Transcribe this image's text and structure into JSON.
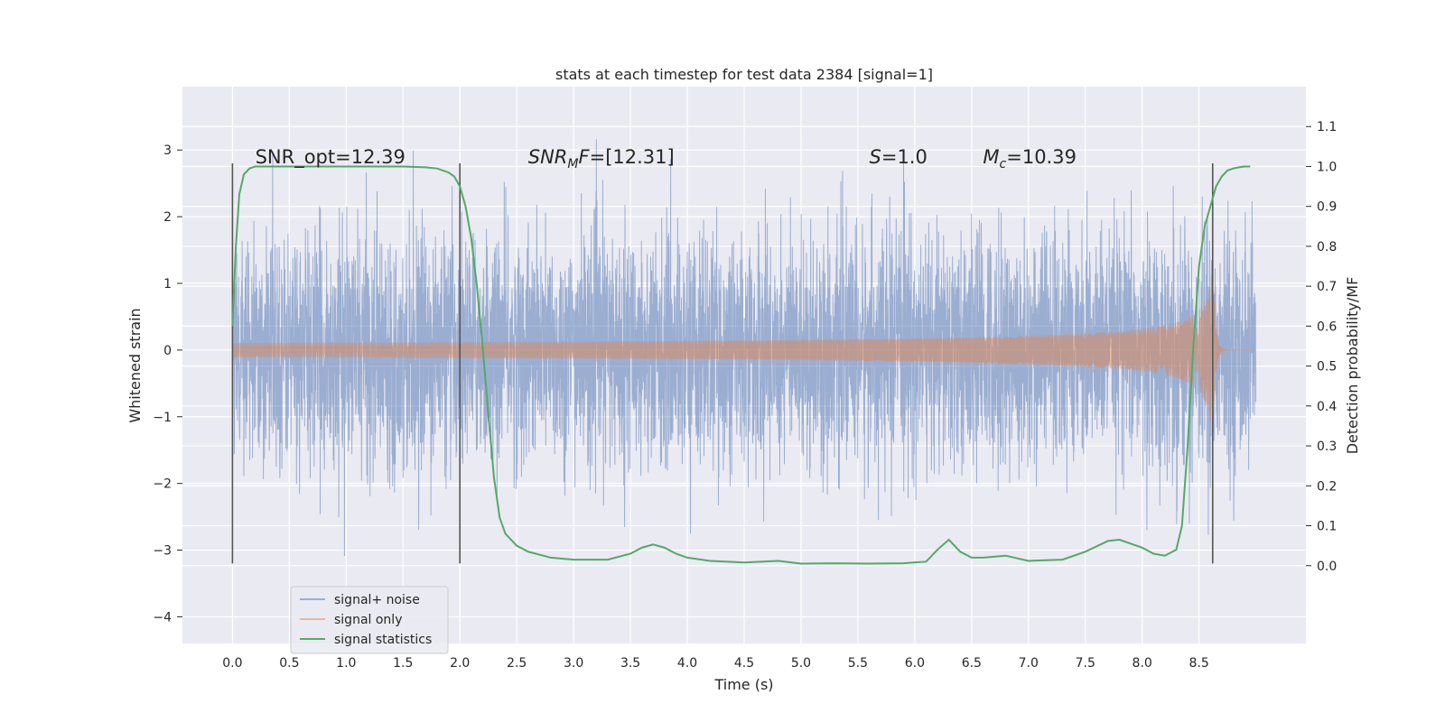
{
  "chart_data": {
    "type": "line",
    "title": "stats at each timestep for test data 2384 [signal=1]",
    "xlabel": "Time (s)",
    "ylabel": "Whitened strain",
    "ylabel_right": "Detection probability/MF",
    "xlim": [
      -0.44,
      9.44
    ],
    "ylim": [
      -4.4,
      3.95
    ],
    "ylim_right": [
      -0.195,
      1.2
    ],
    "xticks": [
      0.0,
      0.5,
      1.0,
      1.5,
      2.0,
      2.5,
      3.0,
      3.5,
      4.0,
      4.5,
      5.0,
      5.5,
      6.0,
      6.5,
      7.0,
      7.5,
      8.0,
      8.5
    ],
    "xtick_labels": [
      "0.0",
      "0.5",
      "1.0",
      "1.5",
      "2.0",
      "2.5",
      "3.0",
      "3.5",
      "4.0",
      "4.5",
      "5.0",
      "5.5",
      "6.0",
      "6.5",
      "7.0",
      "7.5",
      "8.0",
      "8.5"
    ],
    "yticks": [
      -4,
      -3,
      -2,
      -1,
      0,
      1,
      2,
      3
    ],
    "ytick_labels": [
      "−4",
      "−3",
      "−2",
      "−1",
      "0",
      "1",
      "2",
      "3"
    ],
    "yticks_right": [
      0.0,
      0.1,
      0.2,
      0.3,
      0.4,
      0.5,
      0.6,
      0.7,
      0.8,
      0.9,
      1.0,
      1.1
    ],
    "ytick_labels_right": [
      "0.0",
      "0.1",
      "0.2",
      "0.3",
      "0.4",
      "0.5",
      "0.6",
      "0.7",
      "0.8",
      "0.9",
      "1.0",
      "1.1"
    ],
    "grid": true,
    "legend_position": "lower-left",
    "duration": 9.0,
    "noise_amplitude": 0.85,
    "chirp": {
      "merger_time": 8.62,
      "peak_amplitude": 1.55,
      "start_freq": 22,
      "end_freq": 90
    },
    "vertical_lines": [
      0.0,
      2.0,
      8.62
    ],
    "vertical_lines_range": [
      -3.2,
      2.8
    ],
    "annotations": [
      {
        "text": "SNR_opt=12.39",
        "x": 0.2,
        "y": 2.8
      },
      {
        "text": "SNR_MF=[12.31]",
        "x": 2.6,
        "y": 2.8
      },
      {
        "text": "S=1.0",
        "x": 5.6,
        "y": 2.8
      },
      {
        "text": "M_c=10.39",
        "x": 6.6,
        "y": 2.8
      }
    ],
    "series": [
      {
        "name": "signal+ noise",
        "color": "#4c72b0",
        "axis": "left"
      },
      {
        "name": "signal only",
        "color": "#dd8452",
        "axis": "left"
      },
      {
        "name": "signal statistics",
        "color": "#55a868",
        "axis": "right",
        "x": [
          0.0,
          0.03,
          0.06,
          0.1,
          0.15,
          0.2,
          0.3,
          0.5,
          1.0,
          1.5,
          1.7,
          1.8,
          1.9,
          1.95,
          2.0,
          2.05,
          2.1,
          2.15,
          2.2,
          2.25,
          2.3,
          2.35,
          2.4,
          2.5,
          2.6,
          2.8,
          3.0,
          3.3,
          3.5,
          3.6,
          3.7,
          3.8,
          3.9,
          4.0,
          4.2,
          4.5,
          4.8,
          5.0,
          5.3,
          5.6,
          5.9,
          6.1,
          6.2,
          6.3,
          6.4,
          6.5,
          6.6,
          6.8,
          7.0,
          7.3,
          7.5,
          7.7,
          7.8,
          8.0,
          8.1,
          8.2,
          8.3,
          8.35,
          8.4,
          8.45,
          8.5,
          8.55,
          8.6,
          8.65,
          8.7,
          8.75,
          8.8,
          8.85,
          8.9,
          8.95
        ],
        "y": [
          0.6,
          0.8,
          0.93,
          0.98,
          0.995,
          1.0,
          1.0,
          1.0,
          1.0,
          1.0,
          0.998,
          0.995,
          0.985,
          0.975,
          0.95,
          0.9,
          0.82,
          0.7,
          0.55,
          0.38,
          0.22,
          0.12,
          0.08,
          0.05,
          0.035,
          0.02,
          0.015,
          0.015,
          0.03,
          0.045,
          0.053,
          0.045,
          0.03,
          0.02,
          0.012,
          0.008,
          0.012,
          0.005,
          0.006,
          0.005,
          0.006,
          0.01,
          0.04,
          0.065,
          0.035,
          0.02,
          0.02,
          0.025,
          0.012,
          0.015,
          0.035,
          0.062,
          0.065,
          0.045,
          0.03,
          0.025,
          0.04,
          0.1,
          0.3,
          0.55,
          0.75,
          0.85,
          0.9,
          0.95,
          0.975,
          0.99,
          0.995,
          0.998,
          1.0,
          1.0
        ]
      }
    ]
  }
}
